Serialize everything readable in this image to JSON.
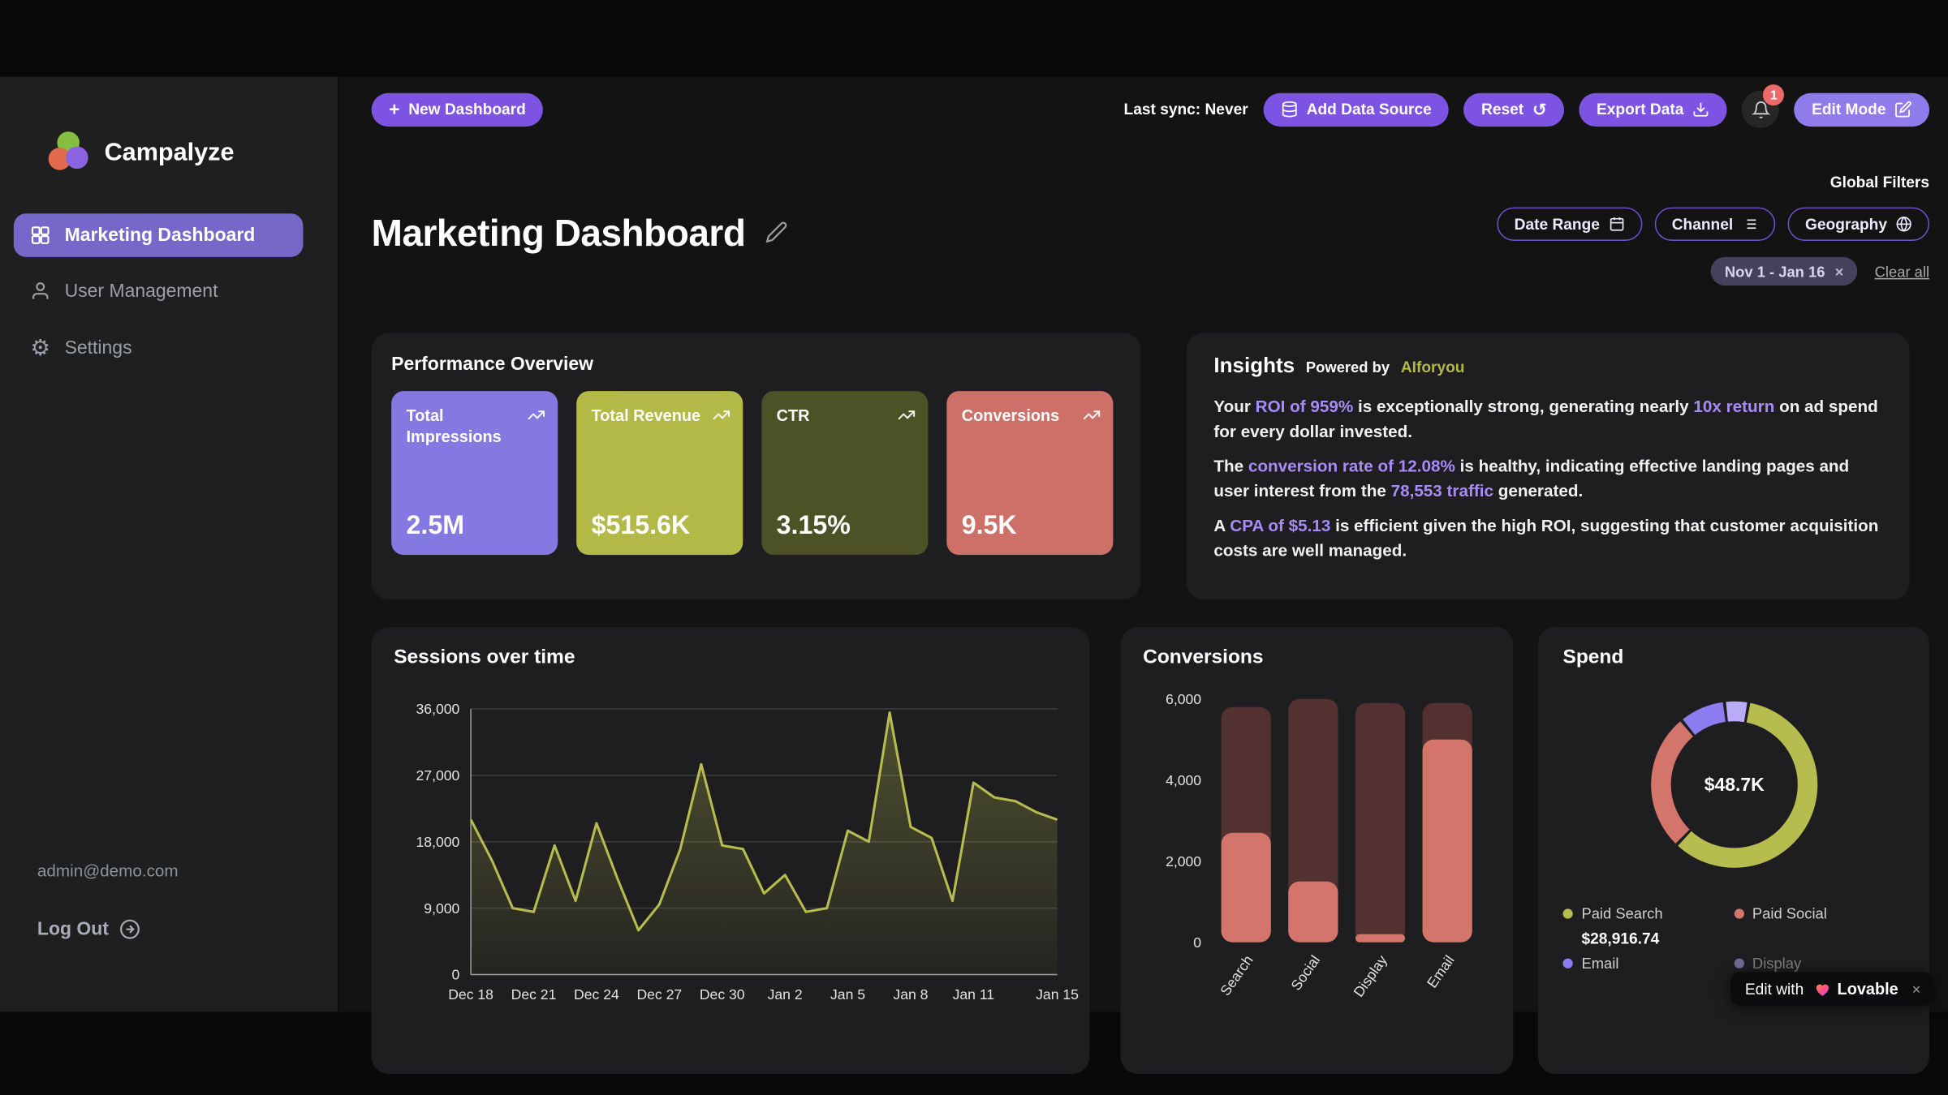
{
  "theme": {
    "accent": "#7d53e3",
    "accent_light": "#8f7bea",
    "olive": "#b6bd4e",
    "salmon": "#d4756b",
    "periwinkle": "#8379e1",
    "highlight": "#a78bfa"
  },
  "brand": {
    "name": "Campalyze"
  },
  "sidebar": {
    "items": [
      {
        "label": "Marketing Dashboard",
        "active": true
      },
      {
        "label": "User Management",
        "active": false
      },
      {
        "label": "Settings",
        "active": false
      }
    ],
    "user_email": "admin@demo.com",
    "logout_label": "Log Out"
  },
  "topbar": {
    "new_dashboard_label": "New Dashboard",
    "last_sync": "Last sync: Never",
    "add_data_source_label": "Add Data Source",
    "reset_label": "Reset",
    "export_label": "Export Data",
    "notification_count": "1",
    "edit_mode_label": "Edit Mode"
  },
  "header": {
    "title": "Marketing Dashboard",
    "global_filters_label": "Global Filters",
    "filters": [
      {
        "label": "Date Range",
        "icon": "calendar-icon"
      },
      {
        "label": "Channel",
        "icon": "list-icon"
      },
      {
        "label": "Geography",
        "icon": "globe-icon"
      }
    ],
    "active_filter_chip": "Nov 1 - Jan 16",
    "clear_all_label": "Clear all"
  },
  "performance": {
    "title": "Performance Overview",
    "kpis": [
      {
        "label": "Total Impressions",
        "value": "2.5M",
        "color": "#8379e1"
      },
      {
        "label": "Total Revenue",
        "value": "$515.6K",
        "color": "#b2b947"
      },
      {
        "label": "CTR",
        "value": "3.15%",
        "color": "#4d5226"
      },
      {
        "label": "Conversions",
        "value": "9.5K",
        "color": "#cd7067"
      }
    ]
  },
  "insights": {
    "title": "Insights",
    "powered_by": "Powered by",
    "provider": "AIforyou",
    "paragraphs": [
      [
        {
          "t": "Your "
        },
        {
          "t": "ROI of 959%",
          "h": true
        },
        {
          "t": " is exceptionally strong, generating nearly "
        },
        {
          "t": "10x return",
          "h": true
        },
        {
          "t": " on ad spend for every dollar invested."
        }
      ],
      [
        {
          "t": "The "
        },
        {
          "t": "conversion rate of 12.08%",
          "h": true
        },
        {
          "t": " is healthy, indicating effective landing pages and user interest from the "
        },
        {
          "t": "78,553 traffic",
          "h": true
        },
        {
          "t": " generated."
        }
      ],
      [
        {
          "t": "A "
        },
        {
          "t": "CPA of $5.13",
          "h": true
        },
        {
          "t": " is efficient given the high ROI, suggesting that customer acquisition costs are well managed."
        }
      ]
    ]
  },
  "chart_data": [
    {
      "type": "line",
      "title": "Sessions over time",
      "values": [
        21000,
        15500,
        9000,
        8500,
        17500,
        10000,
        20500,
        13000,
        6000,
        9500,
        17000,
        28500,
        17500,
        17000,
        11000,
        13500,
        8500,
        9000,
        19500,
        18000,
        35500,
        20000,
        18500,
        10000,
        26000,
        24000,
        23500,
        22000,
        21000
      ],
      "ylim": [
        0,
        36000
      ],
      "yticks": [
        0,
        9000,
        18000,
        27000,
        36000
      ],
      "xtick_labels": [
        "Dec 18",
        "Dec 21",
        "Dec 24",
        "Dec 27",
        "Dec 30",
        "Jan 2",
        "Jan 5",
        "Jan 8",
        "Jan 11",
        "Jan 15"
      ],
      "xtick_indices": [
        0,
        3,
        6,
        9,
        12,
        15,
        18,
        21,
        24,
        28
      ],
      "line_color": "#b6bd4e",
      "grid": true
    },
    {
      "type": "bar",
      "title": "Conversions",
      "categories": [
        "Search",
        "Social",
        "Display",
        "Email"
      ],
      "series": [
        {
          "name": "conversions",
          "values": [
            2700,
            1500,
            200,
            5000
          ],
          "color": "#d4756b"
        },
        {
          "name": "remainder",
          "values": [
            3100,
            4500,
            5700,
            900
          ],
          "color": "#523130"
        }
      ],
      "ylim": [
        0,
        6000
      ],
      "yticks": [
        0,
        2000,
        4000,
        6000
      ]
    },
    {
      "type": "donut",
      "title": "Spend",
      "center_label": "$48.7K",
      "slices": [
        {
          "name": "Paid Search",
          "value": 28916.74,
          "display_value": "$28,916.74",
          "color": "#b6bd4e"
        },
        {
          "name": "Paid Social",
          "value": 13100,
          "color": "#d4756b"
        },
        {
          "name": "Email",
          "value": 4400,
          "color": "#8b7cf0"
        },
        {
          "name": "Display",
          "value": 2283,
          "color": "#b9abf7"
        }
      ]
    }
  ],
  "lovable_badge": {
    "edit_with": "Edit with",
    "brand": "Lovable"
  }
}
